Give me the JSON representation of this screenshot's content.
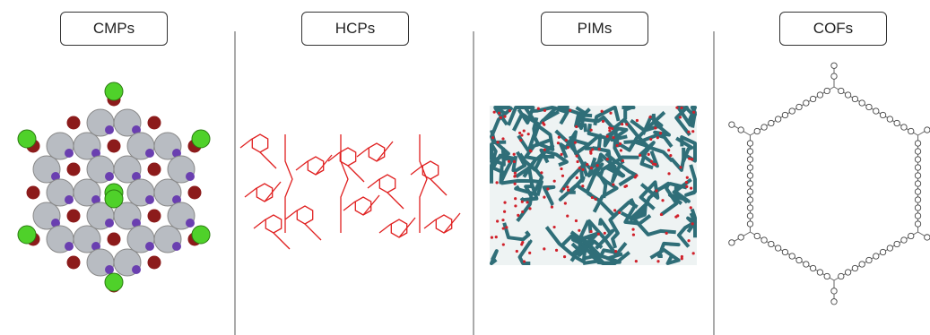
{
  "panels": [
    {
      "label": "CMPs"
    },
    {
      "label": "HCPs"
    },
    {
      "label": "PIMs"
    },
    {
      "label": "COFs"
    }
  ]
}
